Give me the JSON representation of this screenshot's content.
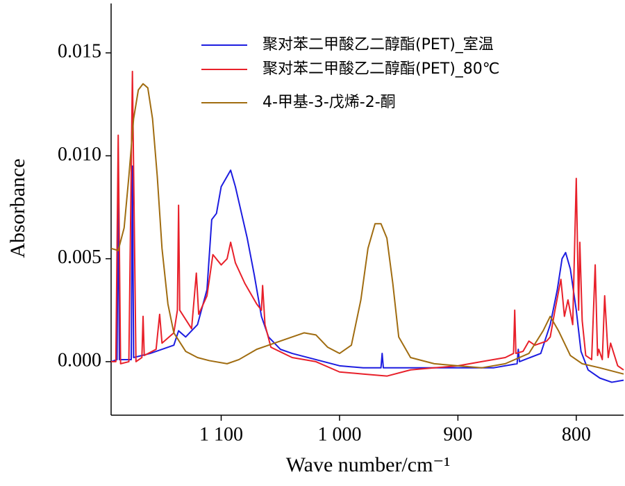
{
  "chart_data": {
    "type": "line",
    "xlabel": "Wave number/cm⁻¹",
    "ylabel": "Absorbance",
    "xlim": [
      1193,
      760
    ],
    "ylim": [
      -0.0026,
      0.0174
    ],
    "xticks": [
      {
        "value": 1100,
        "label": "1 100"
      },
      {
        "value": 1000,
        "label": "1 000"
      },
      900,
      800
    ],
    "yticks": [
      {
        "value": 0,
        "label": "0.000"
      },
      0.005,
      {
        "value": 0.01,
        "label": "0.010"
      },
      0.015
    ],
    "series": [
      {
        "name": "聚对苯二甲酸乙二醇酯(PET)_室温",
        "color": "#1c1ce0",
        "x": [
          1193,
          1188,
          1187,
          1186,
          1176,
          1175,
          1174,
          1160,
          1140,
          1136,
          1130,
          1120,
          1112,
          1108,
          1104,
          1100,
          1096,
          1092,
          1088,
          1084,
          1078,
          1072,
          1066,
          1060,
          1050,
          1040,
          1020,
          1000,
          980,
          965,
          964,
          963,
          940,
          900,
          870,
          850,
          849,
          848,
          830,
          822,
          816,
          812,
          809,
          805,
          800,
          796,
          790,
          780,
          770,
          760
        ],
        "values": [
          0,
          0.0001,
          0.0085,
          0.0001,
          0.0001,
          0.0095,
          0.0002,
          0.0004,
          0.0008,
          0.0015,
          0.0012,
          0.0018,
          0.0035,
          0.0069,
          0.0072,
          0.0085,
          0.0089,
          0.0093,
          0.0085,
          0.0075,
          0.006,
          0.0042,
          0.0022,
          0.0012,
          0.0006,
          0.0004,
          0.0001,
          -0.0002,
          -0.0003,
          -0.0003,
          0.0004,
          -0.0003,
          -0.0003,
          -0.0003,
          -0.0003,
          -0.0001,
          0.0006,
          0,
          0.0004,
          0.0018,
          0.0035,
          0.005,
          0.0053,
          0.0045,
          0.0025,
          0.0005,
          -0.0004,
          -0.0008,
          -0.001,
          -0.0009
        ]
      },
      {
        "name": "聚对苯二甲酸乙二醇酯(PET)_80℃",
        "color": "#e8202a",
        "x": [
          1193,
          1189,
          1187,
          1185,
          1178,
          1175,
          1172,
          1167,
          1166,
          1165,
          1155,
          1152,
          1150,
          1140,
          1137,
          1136,
          1135,
          1125,
          1121,
          1119,
          1112,
          1107,
          1100,
          1095,
          1092,
          1088,
          1080,
          1070,
          1066,
          1065,
          1063,
          1058,
          1040,
          1020,
          1000,
          980,
          960,
          940,
          920,
          900,
          880,
          860,
          853,
          852,
          851,
          845,
          840,
          835,
          825,
          822,
          818,
          813,
          810,
          807,
          803,
          800,
          798,
          797,
          795,
          792,
          787,
          784,
          782,
          781,
          778,
          776,
          773,
          771,
          765,
          760
        ],
        "values": [
          0,
          0,
          0.011,
          -0.0001,
          0,
          0.0141,
          0,
          0.0002,
          0.0022,
          0.0003,
          0.0006,
          0.0023,
          0.0009,
          0.0014,
          0.0025,
          0.0076,
          0.0025,
          0.0016,
          0.0043,
          0.0023,
          0.0032,
          0.0052,
          0.0047,
          0.005,
          0.0058,
          0.0048,
          0.0038,
          0.0028,
          0.0025,
          0.0037,
          0.0018,
          0.0007,
          0.0002,
          0,
          -0.0005,
          -0.0006,
          -0.0007,
          -0.0004,
          -0.0003,
          -0.0002,
          0,
          0.0002,
          0.0004,
          0.0025,
          0.0004,
          0.0005,
          0.001,
          0.0008,
          0.001,
          0.0012,
          0.0025,
          0.004,
          0.0022,
          0.003,
          0.0018,
          0.0089,
          0.0025,
          0.0058,
          0.002,
          0.0003,
          0.0001,
          0.0047,
          0.0003,
          0.0006,
          0.0001,
          0.0032,
          0.0002,
          0.0009,
          -0.0002,
          -0.0004
        ]
      },
      {
        "name": "4-甲基-3-戊烯-2-酮",
        "color": "#a06c10",
        "x": [
          1193,
          1187,
          1182,
          1178,
          1174,
          1170,
          1166,
          1162,
          1158,
          1154,
          1150,
          1145,
          1140,
          1130,
          1120,
          1110,
          1095,
          1085,
          1070,
          1055,
          1040,
          1030,
          1020,
          1010,
          1000,
          990,
          982,
          976,
          970,
          965,
          960,
          955,
          950,
          940,
          920,
          900,
          880,
          860,
          840,
          828,
          822,
          815,
          805,
          795,
          780,
          760
        ],
        "values": [
          0.0055,
          0.0054,
          0.0065,
          0.009,
          0.0118,
          0.0132,
          0.0135,
          0.0133,
          0.0118,
          0.009,
          0.0055,
          0.0028,
          0.0014,
          0.0005,
          0.0002,
          5e-05,
          -0.0001,
          0.0001,
          0.0006,
          0.0009,
          0.0012,
          0.0014,
          0.0013,
          0.0007,
          0.0004,
          0.0008,
          0.003,
          0.0055,
          0.0067,
          0.0067,
          0.006,
          0.0038,
          0.0012,
          0.0002,
          -0.0001,
          -0.0002,
          -0.0003,
          -0.0001,
          0.0004,
          0.0015,
          0.0022,
          0.0015,
          0.0003,
          -0.0001,
          -0.0003,
          -0.0006
        ]
      }
    ]
  }
}
